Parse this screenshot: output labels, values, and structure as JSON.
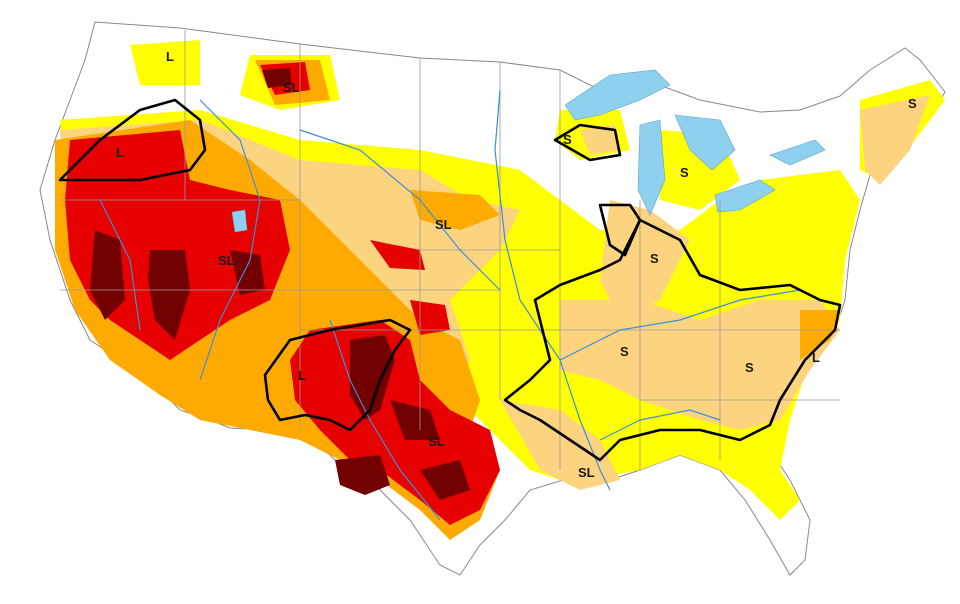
{
  "colors": {
    "none": "#ffffff",
    "D0": "#ffff00",
    "D1": "#fcd37f",
    "D2": "#ffaa00",
    "D3": "#e60000",
    "D4": "#730000",
    "water": "#8fd0ee",
    "rivers": "#3d8fd6",
    "impact_line": "#000000"
  },
  "impact_labels": [
    {
      "id": "nw-idaho",
      "text": "L"
    },
    {
      "id": "montana",
      "text": "SL"
    },
    {
      "id": "oregon",
      "text": "L"
    },
    {
      "id": "utah",
      "text": "SL"
    },
    {
      "id": "nebraska",
      "text": "SL"
    },
    {
      "id": "new-mexico",
      "text": "L"
    },
    {
      "id": "texas",
      "text": "SL"
    },
    {
      "id": "louisiana",
      "text": "SL"
    },
    {
      "id": "wisconsin",
      "text": "S"
    },
    {
      "id": "michigan",
      "text": "S"
    },
    {
      "id": "illinois",
      "text": "S"
    },
    {
      "id": "tennessee",
      "text": "S"
    },
    {
      "id": "carolinas",
      "text": "S"
    },
    {
      "id": "east-nc",
      "text": "L"
    },
    {
      "id": "maine",
      "text": "S"
    }
  ]
}
